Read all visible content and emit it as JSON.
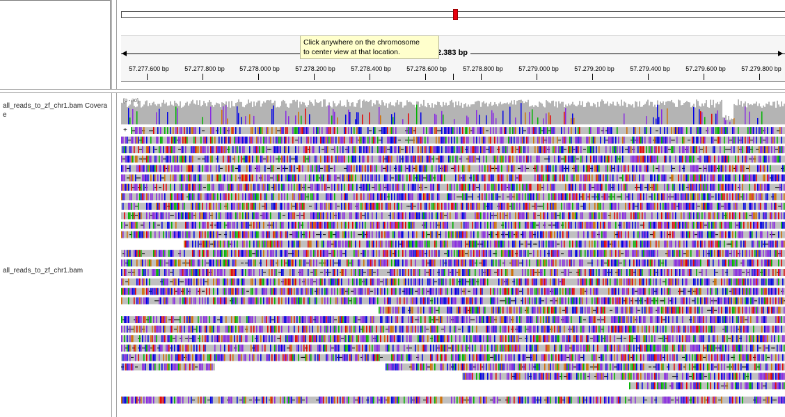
{
  "tracks": {
    "coverage_name_line1": "all_reads_to_zf_chr1.bam Covera",
    "coverage_name_line2": "e",
    "coverage_range": "[0 - 30]",
    "reads_name": "all_reads_to_zf_chr1.bam"
  },
  "ruler": {
    "span_label": "2.383 bp",
    "ticks": [
      "57.277.600 bp",
      "57.277.800 bp",
      "57.278.000 bp",
      "57.278.200 bp",
      "57.278.400 bp",
      "57.278.600 bp",
      "57.278.800 bp",
      "57.279.000 bp",
      "57.279.200 bp",
      "57.279.400 bp",
      "57.279.600 bp",
      "57.279.800 bp"
    ]
  },
  "tooltip": {
    "line1": "Click anywhere on the chromosome",
    "line2": "to center view at that location."
  },
  "expand_marker": "+",
  "colors": {
    "read_gray": "#c0c0c0",
    "mismatch_A": "#00b400",
    "mismatch_C": "#0000e6",
    "mismatch_G": "#d17105",
    "mismatch_T": "#e60000",
    "insertion": "#8a2be2",
    "coverage_gray": "#b4b4b4",
    "ideogram_marker": "#e8000f"
  }
}
